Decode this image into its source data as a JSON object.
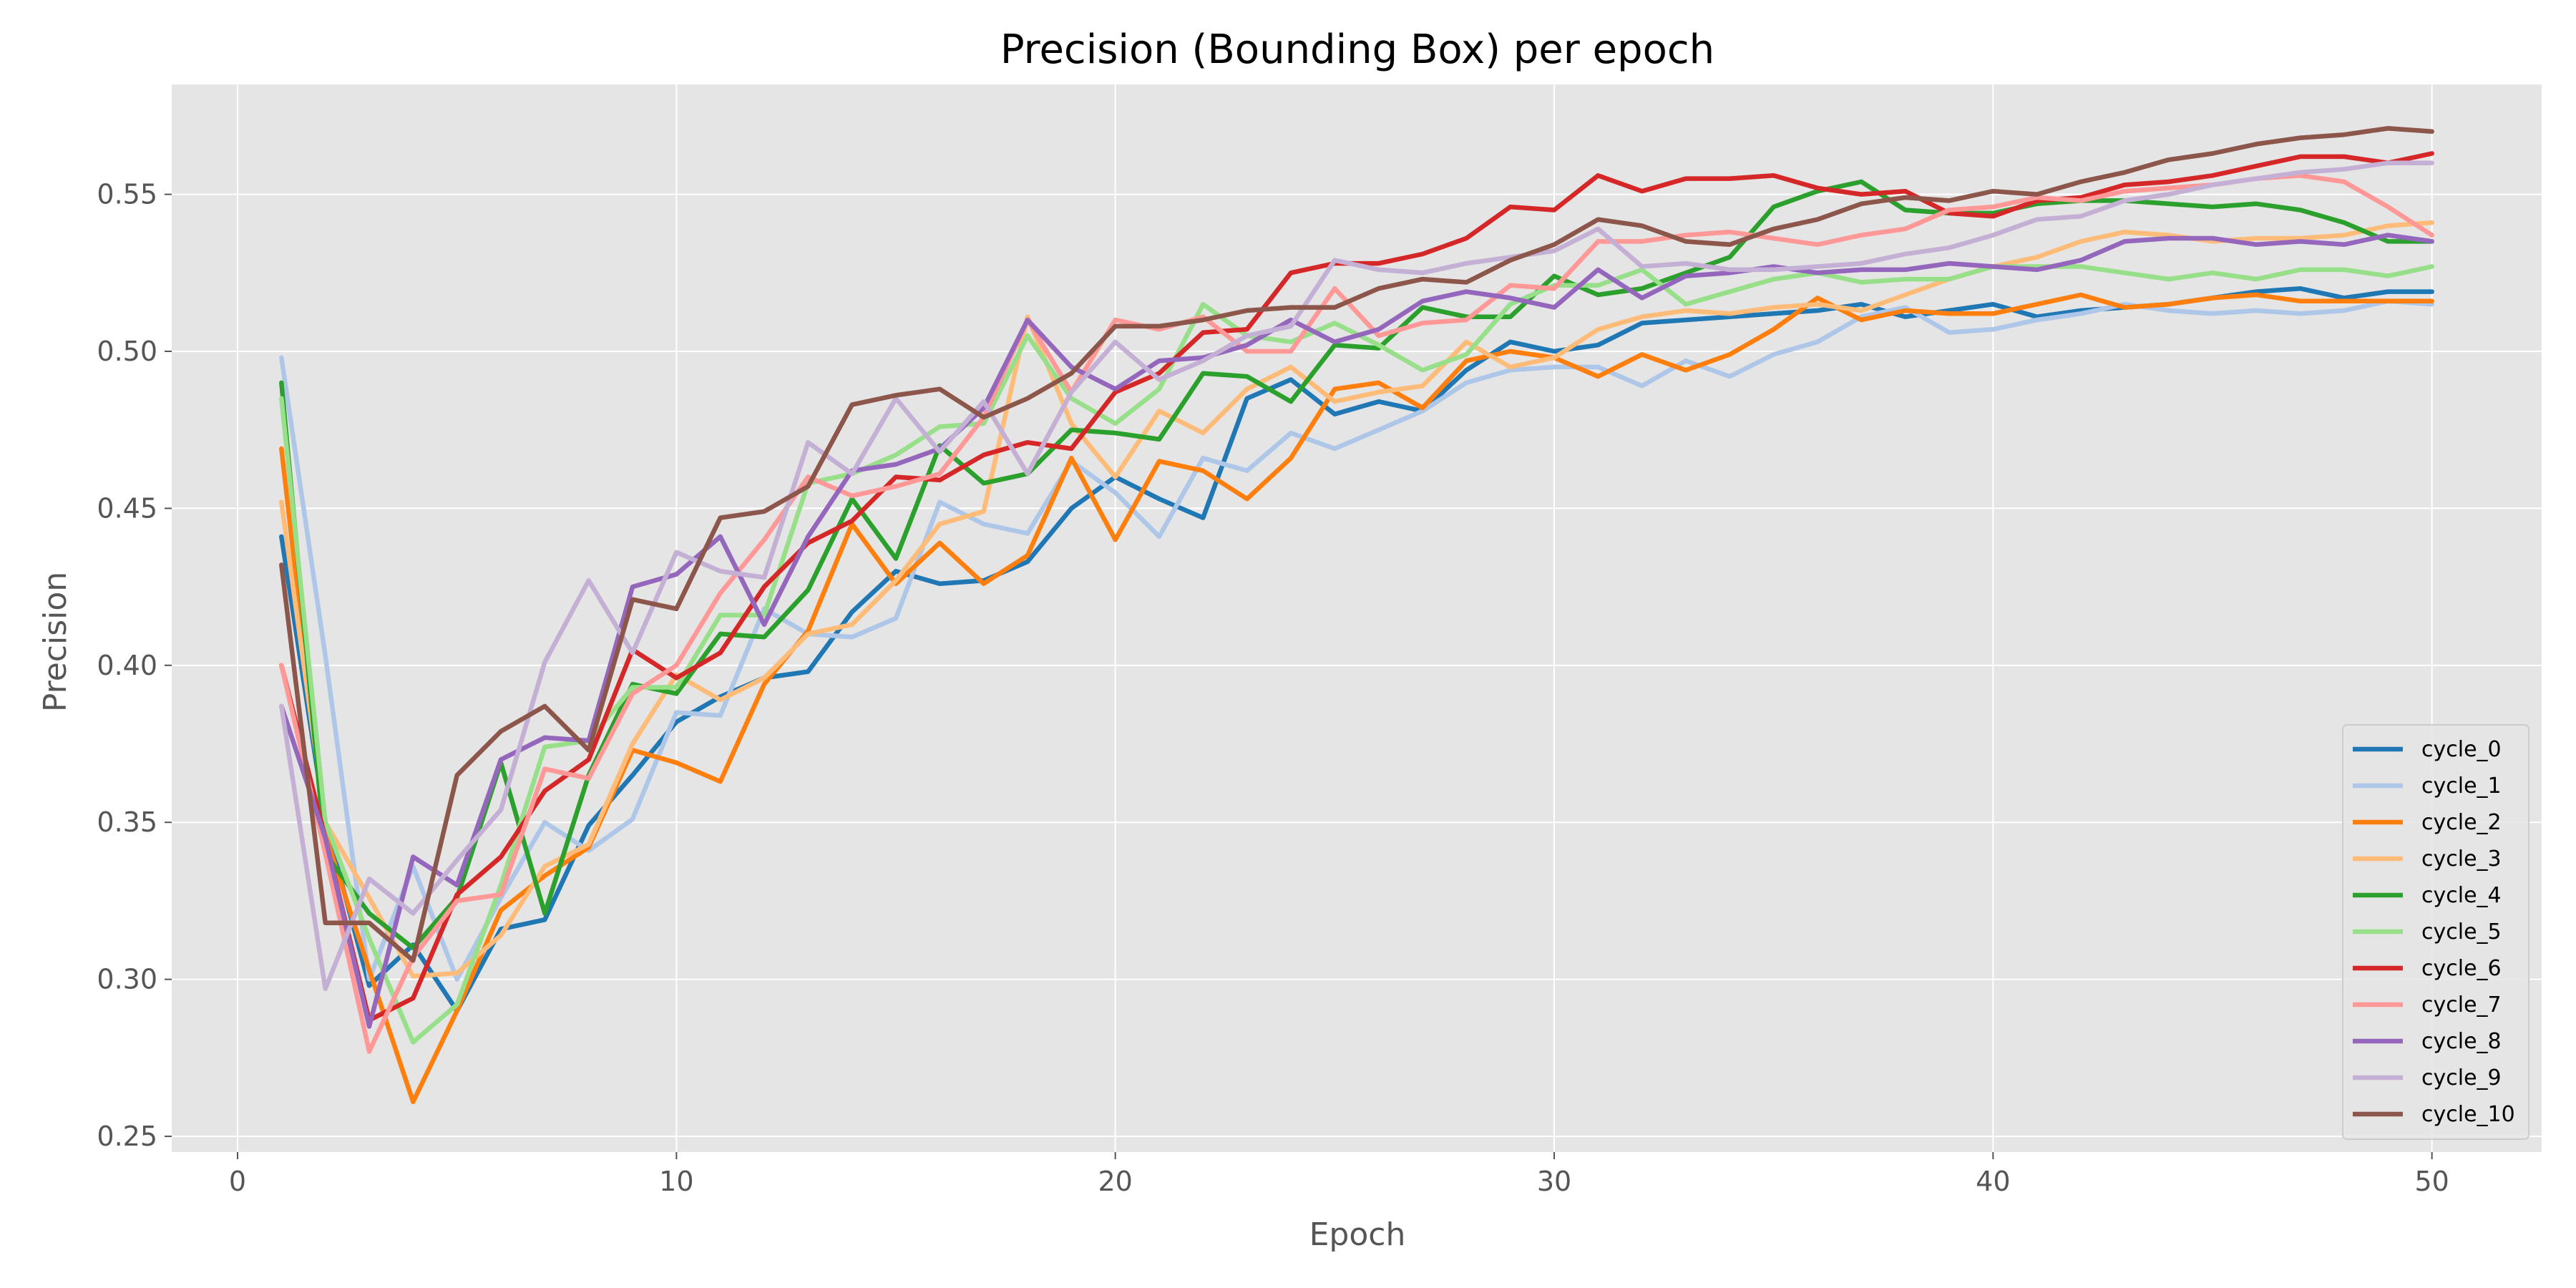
{
  "chart_data": {
    "type": "line",
    "title": "Precision (Bounding Box) per epoch",
    "xlabel": "Epoch",
    "ylabel": "Precision",
    "xlim": [
      -1.5,
      52.5
    ],
    "ylim": [
      0.245,
      0.585
    ],
    "xticks": [
      0,
      10,
      20,
      30,
      40,
      50
    ],
    "yticks": [
      0.25,
      0.3,
      0.35,
      0.4,
      0.45,
      0.5,
      0.55
    ],
    "ytick_labels": [
      "0.25",
      "0.30",
      "0.35",
      "0.40",
      "0.45",
      "0.50",
      "0.55"
    ],
    "grid": true,
    "legend_position": "bottom-right",
    "background": "#e5e5e5",
    "series": [
      {
        "name": "cycle_0",
        "color": "#1f77b4",
        "values": [
          0.441,
          0.35,
          0.298,
          0.311,
          0.29,
          0.316,
          0.319,
          0.349,
          0.365,
          0.382,
          0.39,
          0.396,
          0.398,
          0.417,
          0.43,
          0.426,
          0.427,
          0.433,
          0.45,
          0.46,
          0.453,
          0.447,
          0.485,
          0.491,
          0.48,
          0.484,
          0.481,
          0.494,
          0.503,
          0.5,
          0.502,
          0.509,
          0.51,
          0.511,
          0.512,
          0.513,
          0.515,
          0.511,
          0.513,
          0.515,
          0.511,
          0.513,
          0.514,
          0.515,
          0.517,
          0.519,
          0.52,
          0.517,
          0.519,
          0.519
        ]
      },
      {
        "name": "cycle_1",
        "color": "#aec7e8",
        "values": [
          0.498,
          0.403,
          0.3,
          0.336,
          0.3,
          0.326,
          0.35,
          0.341,
          0.351,
          0.385,
          0.384,
          0.418,
          0.41,
          0.409,
          0.415,
          0.452,
          0.445,
          0.442,
          0.465,
          0.455,
          0.441,
          0.466,
          0.462,
          0.474,
          0.469,
          0.475,
          0.481,
          0.49,
          0.494,
          0.495,
          0.495,
          0.489,
          0.497,
          0.492,
          0.499,
          0.503,
          0.511,
          0.514,
          0.506,
          0.507,
          0.51,
          0.512,
          0.515,
          0.513,
          0.512,
          0.513,
          0.512,
          0.513,
          0.516,
          0.515
        ]
      },
      {
        "name": "cycle_2",
        "color": "#ff7f0e",
        "values": [
          0.469,
          0.346,
          0.303,
          0.261,
          0.29,
          0.322,
          0.333,
          0.342,
          0.373,
          0.369,
          0.363,
          0.394,
          0.411,
          0.445,
          0.426,
          0.439,
          0.426,
          0.435,
          0.466,
          0.44,
          0.465,
          0.462,
          0.453,
          0.466,
          0.488,
          0.49,
          0.482,
          0.497,
          0.5,
          0.498,
          0.492,
          0.499,
          0.494,
          0.499,
          0.507,
          0.517,
          0.51,
          0.513,
          0.512,
          0.512,
          0.515,
          0.518,
          0.514,
          0.515,
          0.517,
          0.518,
          0.516,
          0.516,
          0.516,
          0.516
        ]
      },
      {
        "name": "cycle_3",
        "color": "#ffbb78",
        "values": [
          0.452,
          0.35,
          0.326,
          0.301,
          0.302,
          0.314,
          0.336,
          0.343,
          0.375,
          0.397,
          0.389,
          0.396,
          0.41,
          0.413,
          0.427,
          0.445,
          0.449,
          0.511,
          0.477,
          0.46,
          0.481,
          0.474,
          0.488,
          0.495,
          0.484,
          0.487,
          0.489,
          0.503,
          0.495,
          0.498,
          0.507,
          0.511,
          0.513,
          0.512,
          0.514,
          0.515,
          0.513,
          0.518,
          0.523,
          0.527,
          0.53,
          0.535,
          0.538,
          0.537,
          0.535,
          0.536,
          0.536,
          0.537,
          0.54,
          0.541
        ]
      },
      {
        "name": "cycle_4",
        "color": "#2ca02c",
        "values": [
          0.49,
          0.34,
          0.321,
          0.31,
          0.326,
          0.369,
          0.321,
          0.365,
          0.394,
          0.391,
          0.41,
          0.409,
          0.424,
          0.453,
          0.434,
          0.47,
          0.458,
          0.461,
          0.475,
          0.474,
          0.472,
          0.493,
          0.492,
          0.484,
          0.502,
          0.501,
          0.514,
          0.511,
          0.511,
          0.524,
          0.518,
          0.52,
          0.525,
          0.53,
          0.546,
          0.551,
          0.554,
          0.545,
          0.544,
          0.544,
          0.547,
          0.548,
          0.548,
          0.547,
          0.546,
          0.547,
          0.545,
          0.541,
          0.535,
          0.535
        ]
      },
      {
        "name": "cycle_5",
        "color": "#98df8a",
        "values": [
          0.485,
          0.35,
          0.313,
          0.28,
          0.292,
          0.33,
          0.374,
          0.376,
          0.393,
          0.393,
          0.416,
          0.416,
          0.458,
          0.461,
          0.467,
          0.476,
          0.477,
          0.505,
          0.485,
          0.477,
          0.488,
          0.515,
          0.505,
          0.503,
          0.509,
          0.502,
          0.494,
          0.499,
          0.515,
          0.521,
          0.521,
          0.526,
          0.515,
          0.519,
          0.523,
          0.525,
          0.522,
          0.523,
          0.523,
          0.527,
          0.527,
          0.527,
          0.525,
          0.523,
          0.525,
          0.523,
          0.526,
          0.526,
          0.524,
          0.527
        ]
      },
      {
        "name": "cycle_6",
        "color": "#d62728",
        "values": [
          0.4,
          0.345,
          0.287,
          0.294,
          0.327,
          0.339,
          0.36,
          0.37,
          0.405,
          0.396,
          0.404,
          0.425,
          0.439,
          0.446,
          0.46,
          0.459,
          0.467,
          0.471,
          0.469,
          0.487,
          0.493,
          0.506,
          0.507,
          0.525,
          0.528,
          0.528,
          0.531,
          0.536,
          0.546,
          0.545,
          0.556,
          0.551,
          0.555,
          0.555,
          0.556,
          0.552,
          0.55,
          0.551,
          0.544,
          0.543,
          0.548,
          0.549,
          0.553,
          0.554,
          0.556,
          0.559,
          0.562,
          0.562,
          0.56,
          0.563
        ]
      },
      {
        "name": "cycle_7",
        "color": "#ff9896",
        "values": [
          0.4,
          0.34,
          0.277,
          0.307,
          0.325,
          0.327,
          0.367,
          0.364,
          0.391,
          0.4,
          0.423,
          0.44,
          0.46,
          0.454,
          0.457,
          0.461,
          0.479,
          0.51,
          0.487,
          0.51,
          0.507,
          0.511,
          0.5,
          0.5,
          0.52,
          0.505,
          0.509,
          0.51,
          0.521,
          0.52,
          0.535,
          0.535,
          0.537,
          0.538,
          0.536,
          0.534,
          0.537,
          0.539,
          0.545,
          0.546,
          0.549,
          0.548,
          0.551,
          0.552,
          0.553,
          0.555,
          0.556,
          0.554,
          0.546,
          0.537
        ]
      },
      {
        "name": "cycle_8",
        "color": "#9467bd",
        "values": [
          0.387,
          0.345,
          0.285,
          0.339,
          0.33,
          0.37,
          0.377,
          0.376,
          0.425,
          0.429,
          0.441,
          0.413,
          0.441,
          0.462,
          0.464,
          0.469,
          0.482,
          0.51,
          0.495,
          0.488,
          0.497,
          0.498,
          0.502,
          0.51,
          0.503,
          0.507,
          0.516,
          0.519,
          0.517,
          0.514,
          0.526,
          0.517,
          0.524,
          0.525,
          0.527,
          0.525,
          0.526,
          0.526,
          0.528,
          0.527,
          0.526,
          0.529,
          0.535,
          0.536,
          0.536,
          0.534,
          0.535,
          0.534,
          0.537,
          0.535
        ]
      },
      {
        "name": "cycle_9",
        "color": "#c5b0d5",
        "values": [
          0.387,
          0.297,
          0.332,
          0.321,
          0.338,
          0.354,
          0.401,
          0.427,
          0.404,
          0.436,
          0.43,
          0.428,
          0.471,
          0.461,
          0.485,
          0.468,
          0.484,
          0.461,
          0.487,
          0.503,
          0.491,
          0.497,
          0.505,
          0.508,
          0.529,
          0.526,
          0.525,
          0.528,
          0.53,
          0.532,
          0.539,
          0.527,
          0.528,
          0.526,
          0.526,
          0.527,
          0.528,
          0.531,
          0.533,
          0.537,
          0.542,
          0.543,
          0.548,
          0.55,
          0.553,
          0.555,
          0.557,
          0.558,
          0.56,
          0.56
        ]
      },
      {
        "name": "cycle_10",
        "color": "#8c564b",
        "values": [
          0.432,
          0.318,
          0.318,
          0.306,
          0.365,
          0.379,
          0.387,
          0.373,
          0.421,
          0.418,
          0.447,
          0.449,
          0.457,
          0.483,
          0.486,
          0.488,
          0.479,
          0.485,
          0.493,
          0.508,
          0.508,
          0.51,
          0.513,
          0.514,
          0.514,
          0.52,
          0.523,
          0.522,
          0.529,
          0.534,
          0.542,
          0.54,
          0.535,
          0.534,
          0.539,
          0.542,
          0.547,
          0.549,
          0.548,
          0.551,
          0.55,
          0.554,
          0.557,
          0.561,
          0.563,
          0.566,
          0.568,
          0.569,
          0.571,
          0.57
        ]
      }
    ]
  }
}
